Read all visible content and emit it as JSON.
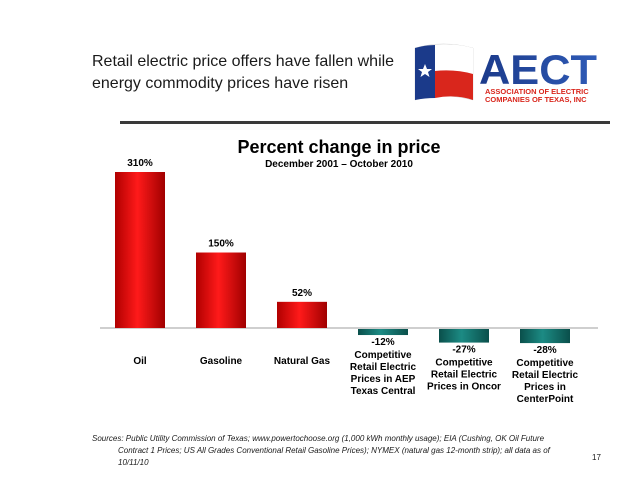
{
  "slide": {
    "title_line1": "Retail electric price offers have fallen while",
    "title_line2": "energy commodity prices have risen",
    "page_number": "17",
    "sources_line1": "Sources:  Public Utility Commission of Texas; www.powertochoose.org (1,000 kWh monthly usage); EIA (Cushing, OK Oil Future",
    "sources_line2": "Contract 1 Prices; US All Grades Conventional Retail Gasoline Prices); NYMEX (natural gas 12-month strip); all data as of",
    "sources_line3": "10/11/10"
  },
  "logo": {
    "text": "AECT",
    "subtext_line1": "ASSOCIATION OF ELECTRIC",
    "subtext_line2": "COMPANIES OF TEXAS, INC",
    "colors": {
      "navy": "#1b3a8a",
      "red": "#d9261c",
      "white": "#ffffff"
    }
  },
  "chart_data": {
    "type": "bar",
    "title": "Percent change in price",
    "subtitle": "December 2001 – October 2010",
    "categories": [
      [
        "Oil"
      ],
      [
        "Gasoline"
      ],
      [
        "Natural Gas"
      ],
      [
        "Competitive",
        "Retail Electric",
        "Prices in AEP",
        "Texas Central"
      ],
      [
        "Competitive",
        "Retail Electric",
        "Prices in Oncor"
      ],
      [
        "Competitive",
        "Retail Electric",
        "Prices in",
        "CenterPoint"
      ]
    ],
    "values": [
      310,
      150,
      52,
      -12,
      -27,
      -28
    ],
    "labels": [
      "310%",
      "150%",
      "52%",
      "-12%",
      "-27%",
      "-28%"
    ],
    "colors": {
      "positive": "#d40000",
      "negative": "#0f6b66"
    },
    "grid": false,
    "legend": "none"
  }
}
